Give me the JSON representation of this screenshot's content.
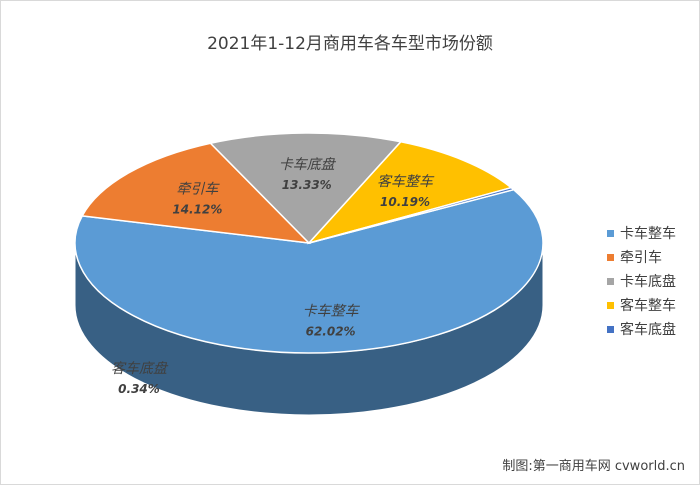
{
  "chart_data": {
    "type": "pie",
    "title": "2021年1-12月商用车各车型市场份额",
    "categories": [
      "卡车整车",
      "牵引车",
      "卡车底盘",
      "客车整车",
      "客车底盘"
    ],
    "values": [
      62.02,
      14.12,
      13.33,
      10.19,
      0.34
    ],
    "labels": [
      "62.02%",
      "14.12%",
      "13.33%",
      "10.19%",
      "0.34%"
    ],
    "colors": [
      "#5b9bd5",
      "#ed7d31",
      "#a5a5a5",
      "#ffc000",
      "#4472c4"
    ],
    "legend_position": "right"
  },
  "credit": "制图:第一商用车网 cvworld.cn"
}
